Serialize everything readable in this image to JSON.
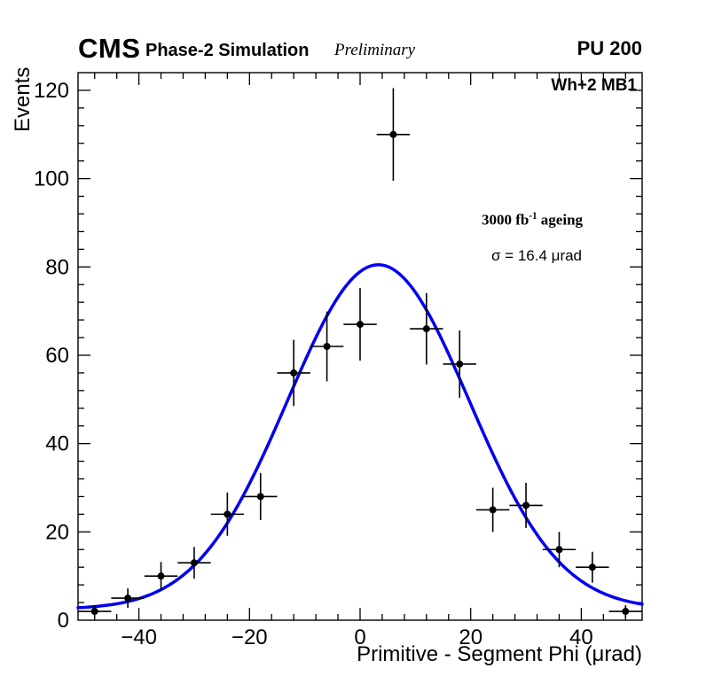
{
  "header": {
    "experiment": "CMS",
    "subtitle": "Phase-2 Simulation",
    "preliminary": "Preliminary",
    "pileup": "PU 200"
  },
  "annotations": {
    "chamber": "Wh+2 MB1",
    "lumi_prefix": "3000 fb",
    "lumi_sup": "-1",
    "lumi_suffix": " ageing",
    "sigma_text": "σ = 16.4 μrad"
  },
  "chart_data": {
    "type": "scatter",
    "title": "",
    "xlabel": "Primitive - Segment Phi (μrad)",
    "ylabel": "Events",
    "xlim": [
      -51,
      51
    ],
    "ylim": [
      0,
      124
    ],
    "x_ticks": [
      -40,
      -20,
      0,
      20,
      40
    ],
    "y_ticks": [
      0,
      20,
      40,
      60,
      80,
      100,
      120
    ],
    "x_minor_step": 4,
    "y_minor_step": 4,
    "grid": false,
    "legend": "none",
    "points": {
      "x": [
        -48,
        -42,
        -36,
        -30,
        -24,
        -18,
        -12,
        -6,
        0,
        6,
        12,
        18,
        24,
        30,
        36,
        42,
        48
      ],
      "y": [
        2,
        5,
        10,
        13,
        24,
        28,
        56,
        62,
        67,
        110,
        66,
        58,
        25,
        26,
        16,
        12,
        2
      ],
      "yerr": [
        1.4,
        2.2,
        3.2,
        3.6,
        4.9,
        5.3,
        7.5,
        7.9,
        8.2,
        10.5,
        8.1,
        7.6,
        5.0,
        5.1,
        4.0,
        3.5,
        1.4
      ],
      "xerr": 3,
      "marker_color": "#000000"
    },
    "fit": {
      "type": "gaussian",
      "amplitude": 78,
      "mean": 3.3,
      "sigma": 16.4,
      "offset": 2.5,
      "color": "#0000f0",
      "label_sigma_urad": 16.4
    }
  }
}
